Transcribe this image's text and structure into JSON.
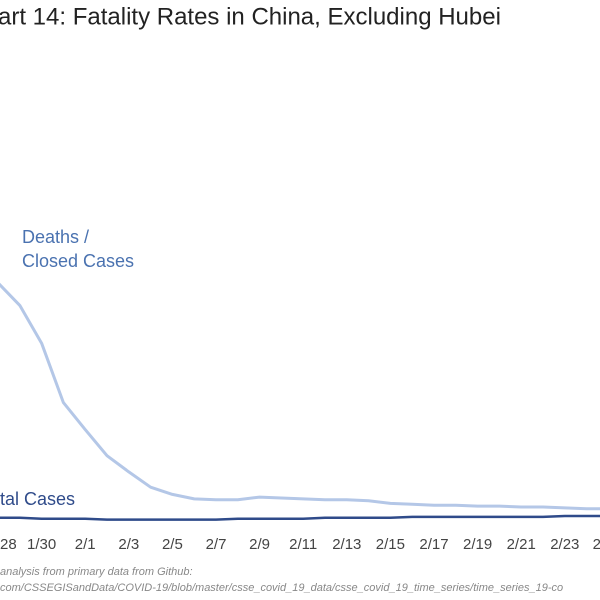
{
  "chart_data": {
    "type": "line",
    "title": "art 14: Fatality Rates in China, Excluding Hubei",
    "categories": [
      "28",
      null,
      "1/30",
      null,
      "2/1",
      null,
      "2/3",
      null,
      "2/5",
      null,
      "2/7",
      null,
      "2/9",
      null,
      "2/11",
      null,
      "2/13",
      null,
      "2/15",
      null,
      "2/17",
      null,
      "2/19",
      null,
      "2/21",
      null,
      "2/23",
      null,
      "2"
    ],
    "series": [
      {
        "name": [
          "Deaths /",
          "Closed Cases"
        ],
        "color": "#b4c7e7",
        "values": [
          26.9,
          24.4,
          20.2,
          13.6,
          10.6,
          7.7,
          5.9,
          4.2,
          3.4,
          2.9,
          2.8,
          2.8,
          3.1,
          3.0,
          2.9,
          2.8,
          2.8,
          2.7,
          2.4,
          2.3,
          2.2,
          2.2,
          2.1,
          2.1,
          2.0,
          2.0,
          1.9,
          1.8,
          1.8
        ]
      },
      {
        "name": "tal Cases",
        "color": "#2f4b8a",
        "values": [
          0.8,
          0.8,
          0.7,
          0.7,
          0.7,
          0.6,
          0.6,
          0.6,
          0.6,
          0.6,
          0.6,
          0.7,
          0.7,
          0.7,
          0.7,
          0.8,
          0.8,
          0.8,
          0.8,
          0.9,
          0.9,
          0.9,
          0.9,
          0.9,
          0.9,
          0.9,
          1.0,
          1.0,
          1.0
        ]
      }
    ],
    "ylim": [
      0,
      30
    ],
    "source": [
      "analysis from primary data from Github:",
      "com/CSSEGISandData/COVID-19/blob/master/csse_covid_19_data/csse_covid_19_time_series/time_series_19-co"
    ]
  }
}
